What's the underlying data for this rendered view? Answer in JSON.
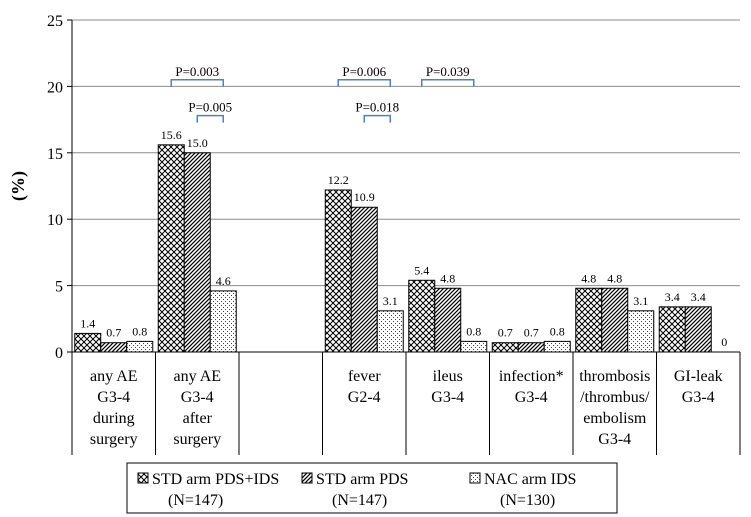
{
  "chart_data": {
    "type": "bar",
    "ylabel": "(%)",
    "ylim": [
      0,
      25
    ],
    "yticks": [
      0,
      5,
      10,
      15,
      20,
      25
    ],
    "grid": true,
    "legend_position": "bottom",
    "categories": [
      [
        "any AE",
        "G3-4",
        "during",
        "surgery"
      ],
      [
        "any AE",
        "G3-4",
        "after",
        "surgery"
      ],
      [],
      [
        "fever",
        "G2-4"
      ],
      [
        "ileus",
        "G3-4"
      ],
      [
        "infection*",
        "G3-4"
      ],
      [
        "thrombosis",
        "/thrombus/",
        "embolism",
        "G3-4"
      ],
      [
        "GI-leak",
        "G3-4"
      ]
    ],
    "series": [
      {
        "name": "STD arm PDS+IDS",
        "n": "(N=147)",
        "pattern": "crosshatch",
        "values": [
          1.4,
          15.6,
          null,
          12.2,
          5.4,
          0.7,
          4.8,
          3.4
        ],
        "labels": [
          "1.4",
          "15.6",
          "",
          "12.2",
          "5.4",
          "0.7",
          "4.8",
          "3.4"
        ]
      },
      {
        "name": "STD arm PDS",
        "n": "(N=147)",
        "pattern": "diagonal",
        "values": [
          0.7,
          15.0,
          null,
          10.9,
          4.8,
          0.7,
          4.8,
          3.4
        ],
        "labels": [
          "0.7",
          "15.0",
          "",
          "10.9",
          "4.8",
          "0.7",
          "4.8",
          "3.4"
        ]
      },
      {
        "name": "NAC arm IDS",
        "n": "(N=130)",
        "pattern": "dots",
        "values": [
          0.8,
          4.6,
          null,
          3.1,
          0.8,
          0.8,
          3.1,
          0
        ],
        "labels": [
          "0.8",
          "4.6",
          "",
          "3.1",
          "0.8",
          "0.8",
          "3.1",
          "0"
        ]
      }
    ],
    "annotations": [
      {
        "text": "P=0.003",
        "category": 1,
        "from_series": 0,
        "to_series": 2,
        "level": 20.5
      },
      {
        "text": "P=0.005",
        "category": 1,
        "from_series": 1,
        "to_series": 2,
        "level": 17.8
      },
      {
        "text": "P=0.006",
        "category": 3,
        "from_series": 0,
        "to_series": 2,
        "level": 20.5
      },
      {
        "text": "P=0.018",
        "category": 3,
        "from_series": 1,
        "to_series": 2,
        "level": 17.8
      },
      {
        "text": "P=0.039",
        "category": 4,
        "from_series": 0,
        "to_series": 2,
        "level": 20.5
      }
    ]
  },
  "colors": {
    "axis": "#000000",
    "bracket": "#4f81bd",
    "fill": "#000000"
  }
}
